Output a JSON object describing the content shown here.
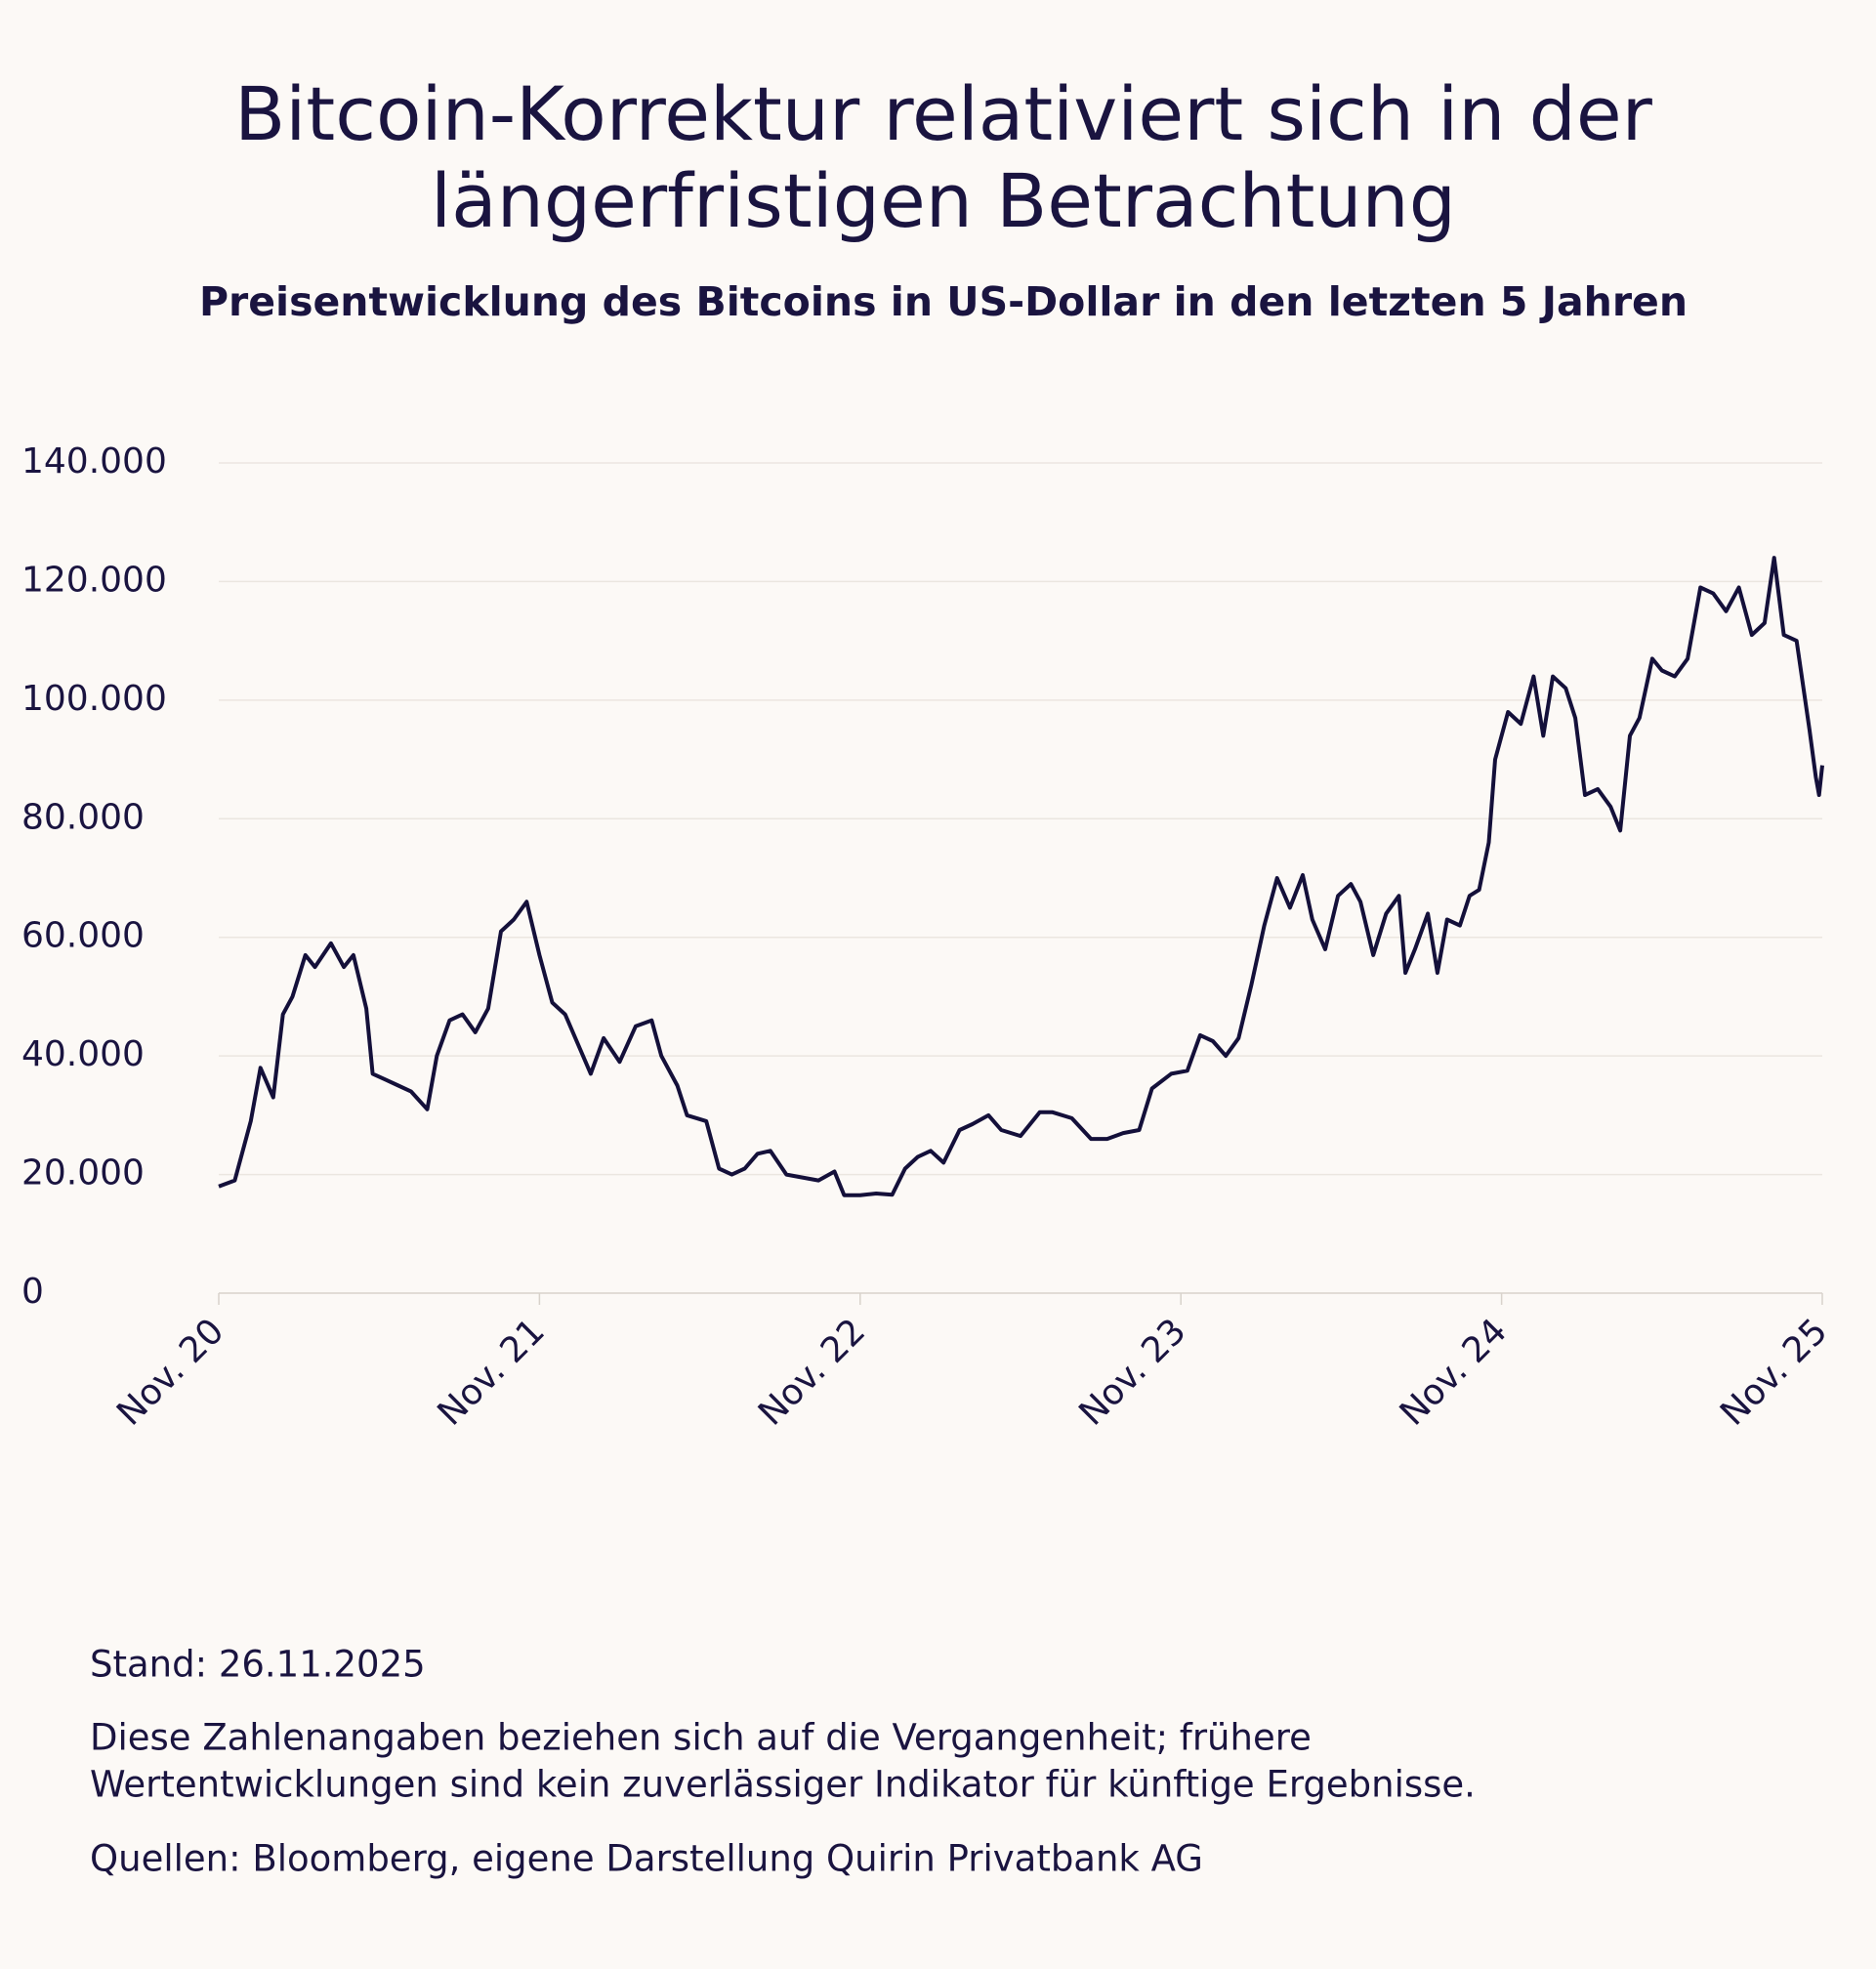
{
  "chart_data": {
    "type": "line",
    "title": [
      "Bitcoin-Korrektur relativiert sich in der",
      "längerfristigen Betrachtung"
    ],
    "subtitle": "Preisentwicklung des Bitcoins in US-Dollar in den letzten 5 Jahren",
    "notes": [
      "Stand: 26.11.2025",
      "Diese Zahlenangaben beziehen sich auf die Vergangenheit; frühere",
      "Wertentwicklungen sind kein zuverlässiger Indikator für künftige Ergebnisse.",
      "Quellen: Bloomberg, eigene Darstellung Quirin Privatbank AG"
    ],
    "color": "#14103a",
    "grid": true,
    "xlim": [
      2020.9,
      2025.9
    ],
    "xticks": [
      {
        "value": 2020.9,
        "label": "Nov. 20"
      },
      {
        "value": 2021.9,
        "label": "Nov. 21"
      },
      {
        "value": 2022.9,
        "label": "Nov. 22"
      },
      {
        "value": 2023.9,
        "label": "Nov. 23"
      },
      {
        "value": 2024.9,
        "label": "Nov. 24"
      },
      {
        "value": 2025.9,
        "label": "Nov. 25"
      }
    ],
    "ylim": [
      0,
      140000
    ],
    "yticks": [
      0,
      {
        "value": 20000,
        "label": "20.000"
      },
      {
        "value": 40000,
        "label": "40.000"
      },
      {
        "value": 60000,
        "label": "60.000"
      },
      {
        "value": 80000,
        "label": "80.000"
      },
      {
        "value": 100000,
        "label": "100.000"
      },
      {
        "value": 120000,
        "label": "120.000"
      },
      {
        "value": 140000,
        "label": "140.000"
      }
    ],
    "x": [
      2020.9,
      2020.95,
      2021.0,
      2021.03,
      2021.07,
      2021.1,
      2021.13,
      2021.17,
      2021.2,
      2021.25,
      2021.29,
      2021.32,
      2021.36,
      2021.38,
      2021.42,
      2021.46,
      2021.5,
      2021.55,
      2021.58,
      2021.62,
      2021.66,
      2021.7,
      2021.74,
      2021.78,
      2021.82,
      2021.86,
      2021.9,
      2021.94,
      2021.98,
      2022.02,
      2022.06,
      2022.1,
      2022.15,
      2022.2,
      2022.25,
      2022.28,
      2022.33,
      2022.36,
      2022.42,
      2022.46,
      2022.5,
      2022.54,
      2022.58,
      2022.62,
      2022.67,
      2022.72,
      2022.77,
      2022.82,
      2022.85,
      2022.9,
      2022.95,
      2023.0,
      2023.04,
      2023.08,
      2023.12,
      2023.16,
      2023.21,
      2023.25,
      2023.3,
      2023.34,
      2023.4,
      2023.46,
      2023.5,
      2023.56,
      2023.62,
      2023.67,
      2023.72,
      2023.77,
      2023.81,
      2023.87,
      2023.92,
      2023.96,
      2024.0,
      2024.04,
      2024.08,
      2024.12,
      2024.16,
      2024.2,
      2024.24,
      2024.28,
      2024.31,
      2024.35,
      2024.39,
      2024.43,
      2024.46,
      2024.5,
      2024.54,
      2024.58,
      2024.6,
      2024.63,
      2024.67,
      2024.7,
      2024.73,
      2024.77,
      2024.8,
      2024.83,
      2024.86,
      2024.88,
      2024.92,
      2024.96,
      2025.0,
      2025.03,
      2025.06,
      2025.1,
      2025.13,
      2025.16,
      2025.2,
      2025.24,
      2025.27,
      2025.3,
      2025.33,
      2025.37,
      2025.4,
      2025.44,
      2025.48,
      2025.52,
      2025.56,
      2025.6,
      2025.64,
      2025.68,
      2025.72,
      2025.75,
      2025.78,
      2025.82,
      2025.86,
      2025.88,
      2025.89,
      2025.9
    ],
    "values": [
      18000,
      19000,
      29000,
      38000,
      33000,
      47000,
      50000,
      57000,
      55000,
      59000,
      55000,
      57000,
      48000,
      37000,
      36000,
      35000,
      34000,
      31000,
      40000,
      46000,
      47000,
      44000,
      48000,
      61000,
      63000,
      66000,
      57000,
      49000,
      47000,
      42000,
      37000,
      43000,
      39000,
      45000,
      46000,
      40000,
      35000,
      30000,
      29000,
      21000,
      20000,
      21000,
      23500,
      24000,
      20000,
      19500,
      19000,
      20500,
      16500,
      16500,
      16800,
      16600,
      21000,
      23000,
      24000,
      22000,
      27500,
      28500,
      30000,
      27500,
      26500,
      30500,
      30500,
      29500,
      26000,
      26000,
      27000,
      27500,
      34500,
      37000,
      37500,
      43500,
      42500,
      40000,
      43000,
      52000,
      62000,
      70000,
      65000,
      70500,
      63000,
      58000,
      67000,
      69000,
      66000,
      57000,
      64000,
      67000,
      54000,
      58000,
      64000,
      54000,
      63000,
      62000,
      67000,
      68000,
      76000,
      90000,
      98000,
      96000,
      104000,
      94000,
      104000,
      102000,
      97000,
      84000,
      85000,
      82000,
      78000,
      94000,
      97000,
      107000,
      105000,
      104000,
      107000,
      119000,
      118000,
      115000,
      119000,
      111000,
      113000,
      124000,
      111000,
      110000,
      95000,
      87000,
      84000,
      89000
    ]
  }
}
